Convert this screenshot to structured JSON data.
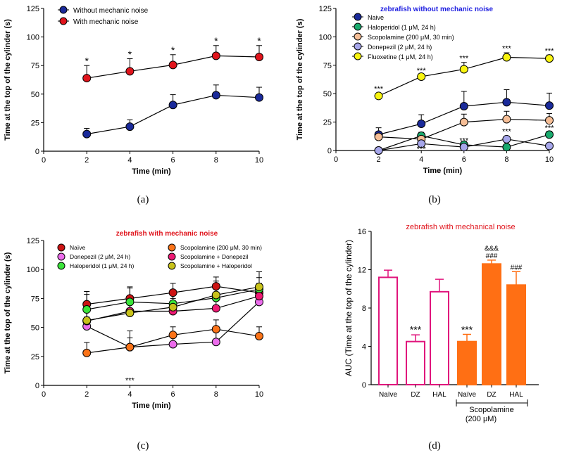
{
  "colors": {
    "navy": "#1a2a9a",
    "red": "#e0141c",
    "green_teal": "#1aaa6e",
    "peach": "#f6be96",
    "lavender": "#a6a6ea",
    "yellow": "#f9f50f",
    "crimson_dark": "#cc1414",
    "magenta_light": "#ec6cec",
    "green_bright": "#3ae43a",
    "orange": "#fb7318",
    "pink": "#ee1a74",
    "olive_yellow": "#c8c21a",
    "magenta_border": "#e0147c",
    "orange_bar": "#ff6f14",
    "title_red": "#e0141c",
    "title_blue": "#1f1fe0"
  },
  "chart_data": [
    {
      "panel": "(a)",
      "type": "line",
      "title": "",
      "xlabel": "Time (min)",
      "ylabel": "Time at the top of the cylinder (s)",
      "xlim": [
        0,
        10
      ],
      "ylim": [
        0,
        125
      ],
      "xticks": [
        0,
        2,
        4,
        6,
        8,
        10
      ],
      "yticks": [
        0,
        25,
        50,
        75,
        100,
        125
      ],
      "x": [
        2,
        4,
        6,
        8,
        10
      ],
      "legend_position": "top-left",
      "series": [
        {
          "name": "Without mechanic noise",
          "color": "#1a2a9a",
          "values": [
            15,
            21.5,
            40.5,
            49,
            47
          ],
          "errors": [
            5,
            6,
            9,
            9,
            9
          ]
        },
        {
          "name": "With mechanic noise",
          "color": "#e0141c",
          "values": [
            64,
            70,
            75.5,
            83.5,
            82.5
          ],
          "errors": [
            11,
            11,
            9,
            9,
            10
          ]
        }
      ],
      "annotations": [
        {
          "text": "*",
          "x": 2,
          "y": 76
        },
        {
          "text": "*",
          "x": 4,
          "y": 82
        },
        {
          "text": "*",
          "x": 6,
          "y": 85.5
        },
        {
          "text": "*",
          "x": 8,
          "y": 93.5
        },
        {
          "text": "*",
          "x": 10,
          "y": 93.5
        }
      ]
    },
    {
      "panel": "(b)",
      "type": "line",
      "title": "zebrafish without mechanic noise",
      "xlabel": "Time (min)",
      "ylabel": "Time at the top of the cylinder (s)",
      "xlim": [
        0,
        10
      ],
      "ylim": [
        0,
        125
      ],
      "xticks": [
        0,
        2,
        4,
        6,
        8,
        10
      ],
      "yticks": [
        0,
        25,
        50,
        75,
        100,
        125
      ],
      "x": [
        2,
        4,
        6,
        8,
        10
      ],
      "legend_position": "top-left",
      "series": [
        {
          "name": "Naive",
          "color": "#1a2a9a",
          "values": [
            14,
            23.5,
            39,
            42.5,
            39.5
          ],
          "errors": [
            6,
            8,
            13,
            11,
            11
          ]
        },
        {
          "name": "Haloperidol (1 μM, 24 h)",
          "color": "#1aaa6e",
          "values": [
            0,
            13,
            5,
            3,
            14
          ],
          "errors": [
            0,
            3,
            3,
            2,
            3
          ]
        },
        {
          "name": "Scopolamine (200 μM, 30 min)",
          "color": "#f6be96",
          "values": [
            12,
            10,
            25,
            27.5,
            26.5
          ],
          "errors": [
            2,
            2,
            7,
            7,
            6
          ]
        },
        {
          "name": "Donepezil (2 μM, 24 h)",
          "color": "#a6a6ea",
          "values": [
            0,
            6,
            3,
            10,
            4
          ],
          "errors": [
            0,
            2,
            1,
            2,
            1
          ]
        },
        {
          "name": "Fluoxetine (1 μM, 24 h)",
          "color": "#f9f50f",
          "values": [
            48,
            65,
            71.5,
            82,
            81
          ],
          "errors": [
            2,
            2,
            6,
            4,
            3
          ]
        }
      ],
      "annotations": [
        {
          "text": "***",
          "x": 2,
          "y": 52
        },
        {
          "text": "***",
          "x": 4,
          "y": 68
        },
        {
          "text": "***",
          "x": 6,
          "y": 79
        },
        {
          "text": "***",
          "x": 8,
          "y": 87.5
        },
        {
          "text": "***",
          "x": 10,
          "y": 85.5
        },
        {
          "text": "***",
          "x": 4,
          "y": -1
        },
        {
          "text": "***",
          "x": 6,
          "y": 6.5
        },
        {
          "text": "***",
          "x": 8,
          "y": 14.5
        },
        {
          "text": "***",
          "x": 10,
          "y": 17.5
        }
      ]
    },
    {
      "panel": "(c)",
      "type": "line",
      "title": "zebrafish with mechanic noise",
      "xlabel": "Time (min)",
      "ylabel": "Time at the top of the cylinder (s)",
      "xlim": [
        0,
        10
      ],
      "ylim": [
        0,
        125
      ],
      "xticks": [
        0,
        2,
        4,
        6,
        8,
        10
      ],
      "yticks": [
        0,
        25,
        50,
        75,
        100,
        125
      ],
      "x": [
        2,
        4,
        6,
        8,
        10
      ],
      "legend_position": "top",
      "series": [
        {
          "name": "Naïve",
          "color": "#cc1414",
          "values": [
            70,
            75,
            80,
            85.5,
            80
          ],
          "errors": [
            11,
            10,
            8,
            8,
            8
          ]
        },
        {
          "name": "Donepezil (2 μM, 24 h)",
          "color": "#ec6cec",
          "values": [
            51,
            33,
            35.5,
            37.5,
            72
          ],
          "errors": [
            8,
            8,
            8,
            9,
            9
          ]
        },
        {
          "name": "Haloperidol (1 μM, 24 h)",
          "color": "#3ae43a",
          "values": [
            65.5,
            72,
            70.5,
            75.5,
            83
          ],
          "errors": [
            13,
            12,
            10,
            10,
            10
          ]
        },
        {
          "name": "Scopolamine (200 μM, 30 min)",
          "color": "#fb7318",
          "values": [
            28,
            33,
            43.5,
            48.5,
            42.5
          ],
          "errors": [
            9,
            14,
            7,
            8,
            8
          ]
        },
        {
          "name": "Scopolamine + Donepezil",
          "color": "#ee1a74",
          "values": [
            55.5,
            64,
            64,
            66.5,
            77
          ],
          "errors": [
            10,
            11,
            11,
            11,
            11
          ]
        },
        {
          "name": "Scopolamine + Haloperidol",
          "color": "#c8c21a",
          "values": [
            56,
            62.5,
            67.5,
            78,
            85
          ],
          "errors": [
            11,
            12,
            12,
            12,
            13
          ]
        }
      ],
      "annotations": [
        {
          "text": "***",
          "x": 4,
          "y": 2
        }
      ]
    },
    {
      "panel": "(d)",
      "type": "bar",
      "title": "zebrafish with mechanical noise",
      "xlabel": "",
      "ylabel": "AUC (Time at the top of the cylinder)",
      "ylim": [
        0,
        16
      ],
      "yticks": [
        0,
        4,
        8,
        12,
        16
      ],
      "categories": [
        "Naïve",
        "DZ",
        "HAL",
        "Naïve",
        "DZ",
        "HAL"
      ],
      "values": [
        11.2,
        4.5,
        9.7,
        4.5,
        12.6,
        10.4
      ],
      "errors": [
        0.75,
        0.7,
        1.3,
        0.75,
        0.4,
        1.4
      ],
      "fills": [
        "none",
        "none",
        "none",
        "orange",
        "orange",
        "orange"
      ],
      "group_label_line1": "Scopolamine",
      "group_label_line2": "(200 μM)",
      "annotations": [
        {
          "text": "***",
          "bar": 1,
          "y": 5.4
        },
        {
          "text": "***",
          "bar": 3,
          "y": 5.4
        },
        {
          "text": "###",
          "bar": 4,
          "y": 13.2
        },
        {
          "text": "&&&",
          "bar": 4,
          "y": 14.0
        },
        {
          "text": "###",
          "bar": 5,
          "y": 12.0
        }
      ]
    }
  ],
  "panel_labels": [
    "(a)",
    "(b)",
    "(c)",
    "(d)"
  ]
}
